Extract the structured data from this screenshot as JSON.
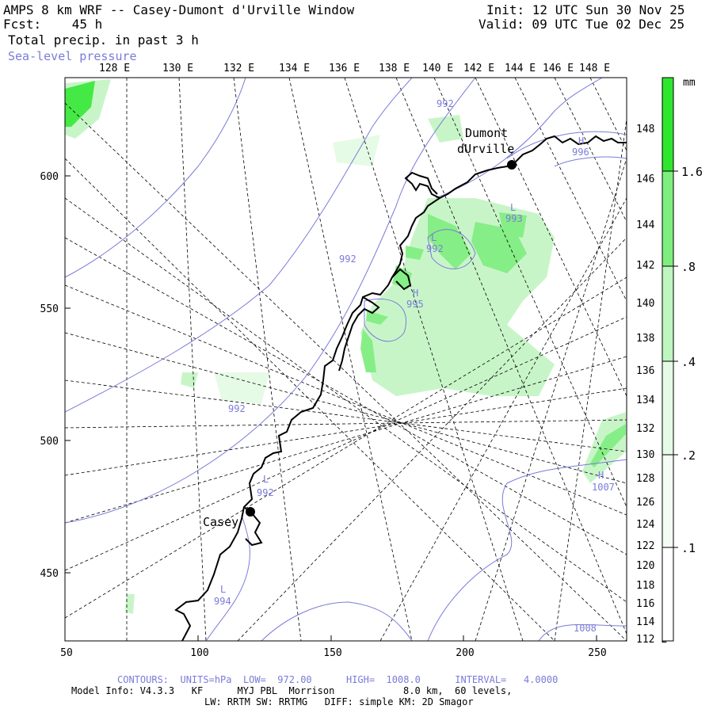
{
  "header": {
    "title": "AMPS 8 km WRF -- Casey-Dumont d'Urville Window",
    "fcst_label": "Fcst:",
    "fcst_value": "45 h",
    "field_label": "Total precip. in past 3 h",
    "overlay_label": "Sea-level pressure",
    "init": "Init: 12 UTC Sun 30 Nov 25",
    "valid": "Valid: 09 UTC Tue 02 Dec 25"
  },
  "map": {
    "top_lon_labels": [
      "128 E",
      "130 E",
      "132 E",
      "134 E",
      "136 E",
      "138 E",
      "140 E",
      "142 E",
      "144 E",
      "146 E",
      "148 E"
    ],
    "right_lon_labels": [
      "148 E",
      "146 E",
      "144 E",
      "142 E",
      "140 E",
      "138 E",
      "136 E",
      "134 E",
      "132 E",
      "130 E",
      "128 E",
      "126 E",
      "124 E",
      "122 E",
      "120 E",
      "118 E",
      "116 E",
      "114 E",
      "112 E"
    ],
    "x_axis_labels": [
      "50",
      "100",
      "150",
      "200",
      "250"
    ],
    "y_axis_labels": [
      "600",
      "550",
      "500",
      "450"
    ],
    "stations": [
      {
        "name": "Casey"
      },
      {
        "name_line1": "Dumont",
        "name_line2": "dUrville"
      }
    ],
    "pressure_labels": [
      {
        "tag": "",
        "value": "992"
      },
      {
        "tag": "H",
        "value": "996"
      },
      {
        "tag": "L",
        "value": "993"
      },
      {
        "tag": "L",
        "value": "992"
      },
      {
        "tag": "",
        "value": "992"
      },
      {
        "tag": "H",
        "value": "995"
      },
      {
        "tag": "",
        "value": "992"
      },
      {
        "tag": "L",
        "value": "992"
      },
      {
        "tag": "L",
        "value": "994"
      },
      {
        "tag": "H",
        "value": "1007"
      },
      {
        "tag": "",
        "value": "1008"
      }
    ]
  },
  "colorbar": {
    "unit": "mm",
    "labels": [
      "1.6",
      ".8",
      ".4",
      ".2",
      ".1"
    ],
    "colors": [
      "#2ee62e",
      "#7eee7e",
      "#bff5bf",
      "#e6fbe6",
      "#ffffff"
    ]
  },
  "footer": {
    "contours": "CONTOURS:  UNITS=hPa  LOW=  972.00      HIGH=  1008.0      INTERVAL=   4.0000",
    "model_info": "Model Info: V4.3.3   KF      MYJ PBL  Morrison            8.0 km,  60 levels,",
    "physics": "LW: RRTM SW: RRTMG   DIFF: simple KM: 2D Smagor"
  },
  "colors": {
    "contour": "#7b7bd9",
    "precip_light": "#c8f5c8",
    "precip_mid": "#86ee86",
    "precip_heavy": "#2ee62e"
  }
}
